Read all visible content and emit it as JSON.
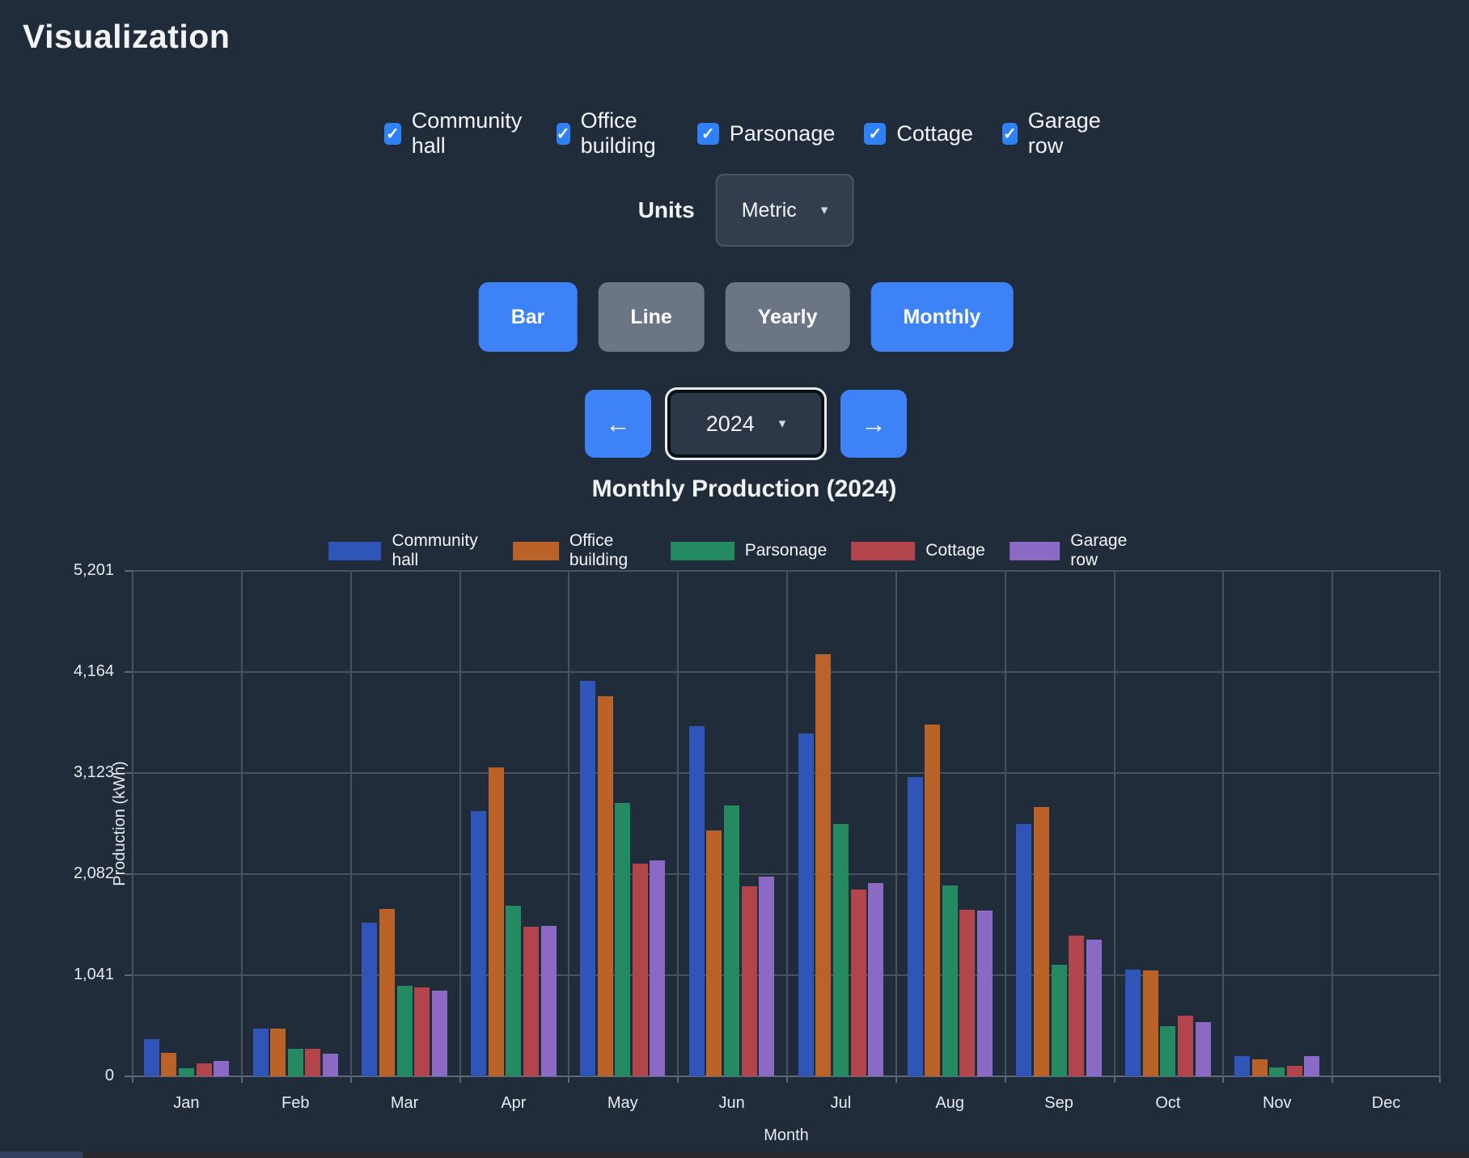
{
  "page": {
    "title": "Visualization"
  },
  "filters": {
    "items": [
      {
        "label": "Community hall",
        "checked": true
      },
      {
        "label": "Office building",
        "checked": true
      },
      {
        "label": "Parsonage",
        "checked": true
      },
      {
        "label": "Cottage",
        "checked": true
      },
      {
        "label": "Garage row",
        "checked": true
      }
    ],
    "check_glyph": "✓"
  },
  "units": {
    "label": "Units",
    "value": "Metric",
    "caret_glyph": "▾"
  },
  "view_buttons": [
    {
      "label": "Bar",
      "active": true
    },
    {
      "label": "Line",
      "active": false
    },
    {
      "label": "Yearly",
      "active": false
    },
    {
      "label": "Monthly",
      "active": true
    }
  ],
  "year_nav": {
    "prev_glyph": "←",
    "year": "2024",
    "next_glyph": "→",
    "caret_glyph": "▾"
  },
  "chart_data": {
    "type": "bar",
    "title": "Monthly Production (2024)",
    "xlabel": "Month",
    "ylabel": "Production (kWh)",
    "categories": [
      "Jan",
      "Feb",
      "Mar",
      "Apr",
      "May",
      "Jun",
      "Jul",
      "Aug",
      "Sep",
      "Oct",
      "Nov",
      "Dec"
    ],
    "series": [
      {
        "name": "Community hall",
        "color": "#2e55b7",
        "values": [
          380,
          490,
          1585,
          2730,
          4070,
          3605,
          3525,
          3080,
          2600,
          1100,
          205,
          0
        ]
      },
      {
        "name": "Office building",
        "color": "#bb6229",
        "values": [
          245,
          490,
          1720,
          3175,
          3910,
          2530,
          4345,
          3620,
          2770,
          1090,
          175,
          0
        ]
      },
      {
        "name": "Parsonage",
        "color": "#248a61",
        "values": [
          80,
          280,
          930,
          1760,
          2810,
          2790,
          2600,
          1960,
          1150,
          515,
          90,
          0
        ]
      },
      {
        "name": "Cottage",
        "color": "#b2444b",
        "values": [
          135,
          280,
          915,
          1540,
          2185,
          1955,
          1920,
          1715,
          1450,
          625,
          105,
          0
        ]
      },
      {
        "name": "Garage row",
        "color": "#8b6ac6",
        "values": [
          155,
          235,
          880,
          1545,
          2220,
          2055,
          1990,
          1710,
          1405,
          555,
          205,
          0
        ]
      }
    ],
    "ylim": [
      0,
      5201
    ],
    "yticks": [
      0,
      1041,
      2082,
      3123,
      4164,
      5201
    ],
    "ytick_labels": [
      "0",
      "1,041",
      "2,082",
      "3,123",
      "4,164",
      "5,201"
    ],
    "legend_position": "top",
    "grid": true
  },
  "colors": {
    "background": "#212c3b",
    "accent_blue": "#3d82f6",
    "inactive_gray": "#6b7584",
    "gridline": "#47525f"
  }
}
